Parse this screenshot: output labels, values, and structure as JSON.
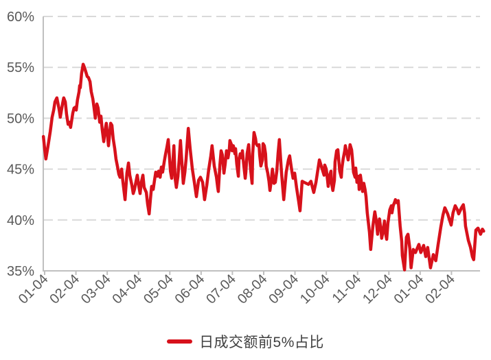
{
  "chart_data": {
    "type": "line",
    "title": "",
    "legend": {
      "position": "bottom",
      "entries": [
        "日成交额前5%占比"
      ]
    },
    "x_axis": {
      "tick_labels": [
        "01-04",
        "02-04",
        "03-04",
        "04-04",
        "05-04",
        "06-04",
        "07-04",
        "08-04",
        "09-04",
        "10-04",
        "11-04",
        "12-04",
        "01-04",
        "02-04"
      ],
      "x_unit": "months_from_first_tick"
    },
    "y_axis": {
      "min": 35,
      "max": 60,
      "step": 5,
      "unit": "%",
      "tick_labels": [
        "35%",
        "40%",
        "45%",
        "50%",
        "55%",
        "60%"
      ]
    },
    "grid": {
      "horizontal": true,
      "style": "dashed"
    },
    "style": {
      "grid_color": "#d9d9d9",
      "axis_color": "#bfbfbf",
      "tick_label_color": "#595959",
      "background": "#ffffff"
    },
    "series": [
      {
        "name": "日成交额前5%占比",
        "color": "#d7111b",
        "points": [
          [
            -0.04,
            48.2
          ],
          [
            0,
            47
          ],
          [
            0.04,
            46
          ],
          [
            0.11,
            47.3
          ],
          [
            0.18,
            48.7
          ],
          [
            0.24,
            50.1
          ],
          [
            0.29,
            50.8
          ],
          [
            0.33,
            51.6
          ],
          [
            0.39,
            52
          ],
          [
            0.46,
            50.9
          ],
          [
            0.5,
            50.1
          ],
          [
            0.57,
            51.4
          ],
          [
            0.61,
            52
          ],
          [
            0.66,
            51.6
          ],
          [
            0.7,
            50.4
          ],
          [
            0.75,
            49.4
          ],
          [
            0.79,
            49.6
          ],
          [
            0.83,
            49.1
          ],
          [
            0.9,
            50.5
          ],
          [
            0.94,
            51
          ],
          [
            0.99,
            51.1
          ],
          [
            1.01,
            50.8
          ],
          [
            1.05,
            51.8
          ],
          [
            1.1,
            52.6
          ],
          [
            1.12,
            53.2
          ],
          [
            1.14,
            53
          ],
          [
            1.18,
            54.4
          ],
          [
            1.23,
            55.3
          ],
          [
            1.27,
            55
          ],
          [
            1.32,
            54.5
          ],
          [
            1.36,
            54.1
          ],
          [
            1.4,
            54
          ],
          [
            1.45,
            53.6
          ],
          [
            1.49,
            52.6
          ],
          [
            1.54,
            51.9
          ],
          [
            1.58,
            51
          ],
          [
            1.62,
            50
          ],
          [
            1.67,
            51.4
          ],
          [
            1.71,
            51
          ],
          [
            1.76,
            49.6
          ],
          [
            1.8,
            50.2
          ],
          [
            1.84,
            48.9
          ],
          [
            1.89,
            47.7
          ],
          [
            1.93,
            48.8
          ],
          [
            1.97,
            49.5
          ],
          [
            2.04,
            47.3
          ],
          [
            2.11,
            49.5
          ],
          [
            2.15,
            49.3
          ],
          [
            2.19,
            48
          ],
          [
            2.24,
            47
          ],
          [
            2.28,
            46
          ],
          [
            2.33,
            45.2
          ],
          [
            2.37,
            44.5
          ],
          [
            2.41,
            44.2
          ],
          [
            2.46,
            45
          ],
          [
            2.5,
            43.8
          ],
          [
            2.57,
            42
          ],
          [
            2.63,
            44.6
          ],
          [
            2.68,
            45.6
          ],
          [
            2.72,
            44.4
          ],
          [
            2.79,
            43.4
          ],
          [
            2.83,
            42.6
          ],
          [
            2.87,
            43
          ],
          [
            2.92,
            43.8
          ],
          [
            2.96,
            44.4
          ],
          [
            3.01,
            43.3
          ],
          [
            3.05,
            42.6
          ],
          [
            3.09,
            43.7
          ],
          [
            3.14,
            44.4
          ],
          [
            3.18,
            43.2
          ],
          [
            3.25,
            42.7
          ],
          [
            3.29,
            41.6
          ],
          [
            3.34,
            40.6
          ],
          [
            3.38,
            42
          ],
          [
            3.42,
            43.3
          ],
          [
            3.47,
            43
          ],
          [
            3.51,
            43.9
          ],
          [
            3.55,
            44.7
          ],
          [
            3.6,
            44.3
          ],
          [
            3.64,
            44.8
          ],
          [
            3.69,
            44.2
          ],
          [
            3.73,
            45.2
          ],
          [
            3.77,
            44.7
          ],
          [
            3.82,
            45.7
          ],
          [
            3.86,
            46.4
          ],
          [
            3.91,
            47.2
          ],
          [
            3.95,
            47.9
          ],
          [
            4.02,
            44.8
          ],
          [
            4.06,
            44.1
          ],
          [
            4.1,
            45.7
          ],
          [
            4.13,
            47.3
          ],
          [
            4.17,
            44.1
          ],
          [
            4.21,
            43.2
          ],
          [
            4.26,
            44.3
          ],
          [
            4.3,
            46
          ],
          [
            4.34,
            47.8
          ],
          [
            4.39,
            45.4
          ],
          [
            4.43,
            43.6
          ],
          [
            4.48,
            44.7
          ],
          [
            4.52,
            46
          ],
          [
            4.59,
            49
          ],
          [
            4.65,
            47
          ],
          [
            4.72,
            45
          ],
          [
            4.78,
            43.8
          ],
          [
            4.85,
            42.3
          ],
          [
            4.92,
            43.9
          ],
          [
            4.98,
            44.2
          ],
          [
            5.05,
            43.7
          ],
          [
            5.11,
            42
          ],
          [
            5.18,
            43.4
          ],
          [
            5.24,
            44.9
          ],
          [
            5.31,
            46.3
          ],
          [
            5.35,
            47.3
          ],
          [
            5.42,
            45.3
          ],
          [
            5.49,
            44.2
          ],
          [
            5.53,
            43.2
          ],
          [
            5.55,
            42.8
          ],
          [
            5.6,
            45.4
          ],
          [
            5.64,
            46.8
          ],
          [
            5.68,
            46.4
          ],
          [
            5.73,
            44.6
          ],
          [
            5.77,
            45.5
          ],
          [
            5.81,
            46.8
          ],
          [
            5.86,
            46.1
          ],
          [
            5.9,
            46.9
          ],
          [
            5.92,
            47.8
          ],
          [
            5.97,
            47.4
          ],
          [
            5.99,
            46.8
          ],
          [
            6.03,
            47.3
          ],
          [
            6.08,
            46.5
          ],
          [
            6.1,
            47
          ],
          [
            6.14,
            45.5
          ],
          [
            6.19,
            44.3
          ],
          [
            6.21,
            45.9
          ],
          [
            6.25,
            46.5
          ],
          [
            6.3,
            46.1
          ],
          [
            6.32,
            46.8
          ],
          [
            6.36,
            45.5
          ],
          [
            6.41,
            44.1
          ],
          [
            6.43,
            44.7
          ],
          [
            6.47,
            46.5
          ],
          [
            6.52,
            47.4
          ],
          [
            6.54,
            46.6
          ],
          [
            6.58,
            45
          ],
          [
            6.63,
            43.6
          ],
          [
            6.65,
            46.5
          ],
          [
            6.69,
            48.6
          ],
          [
            6.74,
            48
          ],
          [
            6.76,
            47.5
          ],
          [
            6.8,
            47.3
          ],
          [
            6.85,
            47.4
          ],
          [
            6.87,
            46.4
          ],
          [
            6.91,
            45.3
          ],
          [
            6.96,
            45.9
          ],
          [
            6.98,
            47.5
          ],
          [
            7.02,
            47.3
          ],
          [
            7.06,
            46.5
          ],
          [
            7.08,
            45.3
          ],
          [
            7.13,
            44.6
          ],
          [
            7.17,
            43.8
          ],
          [
            7.2,
            42.9
          ],
          [
            7.24,
            43.8
          ],
          [
            7.28,
            45
          ],
          [
            7.33,
            43.6
          ],
          [
            7.37,
            43.7
          ],
          [
            7.42,
            44.8
          ],
          [
            7.46,
            46.6
          ],
          [
            7.5,
            47.9
          ],
          [
            7.57,
            44.6
          ],
          [
            7.64,
            42
          ],
          [
            7.72,
            44.7
          ],
          [
            7.79,
            45.9
          ],
          [
            7.83,
            46.3
          ],
          [
            7.9,
            44.8
          ],
          [
            7.94,
            44.1
          ],
          [
            7.99,
            44.6
          ],
          [
            8.05,
            43.2
          ],
          [
            8.12,
            41.8
          ],
          [
            8.16,
            40.9
          ],
          [
            8.23,
            43.8
          ],
          [
            8.29,
            43.7
          ],
          [
            8.36,
            43.6
          ],
          [
            8.43,
            43.5
          ],
          [
            8.51,
            43.8
          ],
          [
            8.6,
            42.7
          ],
          [
            8.67,
            43.7
          ],
          [
            8.73,
            44.9
          ],
          [
            8.78,
            45.9
          ],
          [
            8.82,
            45.5
          ],
          [
            8.89,
            44.8
          ],
          [
            8.93,
            44.4
          ],
          [
            8.95,
            45.4
          ],
          [
            9,
            45
          ],
          [
            9.04,
            43.9
          ],
          [
            9.06,
            43.3
          ],
          [
            9.11,
            44.4
          ],
          [
            9.15,
            44.8
          ],
          [
            9.17,
            43.6
          ],
          [
            9.21,
            42.9
          ],
          [
            9.26,
            43.9
          ],
          [
            9.28,
            45.7
          ],
          [
            9.33,
            46.8
          ],
          [
            9.37,
            46.9
          ],
          [
            9.39,
            46.2
          ],
          [
            9.43,
            44.8
          ],
          [
            9.48,
            44.2
          ],
          [
            9.5,
            45.1
          ],
          [
            9.54,
            46
          ],
          [
            9.59,
            46.8
          ],
          [
            9.61,
            47.3
          ],
          [
            9.7,
            45.9
          ],
          [
            9.76,
            47.4
          ],
          [
            9.81,
            46.9
          ],
          [
            9.83,
            46.2
          ],
          [
            9.87,
            44.7
          ],
          [
            9.92,
            44.2
          ],
          [
            9.94,
            45.1
          ],
          [
            9.98,
            43.7
          ],
          [
            10.03,
            44.3
          ],
          [
            10.05,
            43
          ],
          [
            10.09,
            44.4
          ],
          [
            10.14,
            43.3
          ],
          [
            10.16,
            42.8
          ],
          [
            10.2,
            43.6
          ],
          [
            10.24,
            43
          ],
          [
            10.27,
            42.3
          ],
          [
            10.31,
            40.7
          ],
          [
            10.38,
            38.8
          ],
          [
            10.42,
            37.1
          ],
          [
            10.49,
            39.4
          ],
          [
            10.55,
            40.8
          ],
          [
            10.6,
            39.9
          ],
          [
            10.64,
            38.6
          ],
          [
            10.7,
            40.1
          ],
          [
            10.75,
            39
          ],
          [
            10.77,
            38.2
          ],
          [
            10.82,
            39
          ],
          [
            10.86,
            39.9
          ],
          [
            10.88,
            38.9
          ],
          [
            10.93,
            38.1
          ],
          [
            10.97,
            39.7
          ],
          [
            11.03,
            41
          ],
          [
            11.08,
            41.4
          ],
          [
            11.1,
            40.7
          ],
          [
            11.14,
            41.4
          ],
          [
            11.19,
            41.8
          ],
          [
            11.21,
            42
          ],
          [
            11.25,
            41.7
          ],
          [
            11.3,
            41.9
          ],
          [
            11.32,
            41
          ],
          [
            11.36,
            39.4
          ],
          [
            11.41,
            37.9
          ],
          [
            11.43,
            36.5
          ],
          [
            11.5,
            35.1
          ],
          [
            11.56,
            38.3
          ],
          [
            11.61,
            38.6
          ],
          [
            11.67,
            37.2
          ],
          [
            11.71,
            35.3
          ],
          [
            11.78,
            37.1
          ],
          [
            11.85,
            36.8
          ],
          [
            11.96,
            37.6
          ],
          [
            12.02,
            36.8
          ],
          [
            12.11,
            37.5
          ],
          [
            12.18,
            36.4
          ],
          [
            12.24,
            37.3
          ],
          [
            12.33,
            35.3
          ],
          [
            12.42,
            36.6
          ],
          [
            12.5,
            36
          ],
          [
            12.57,
            37.5
          ],
          [
            12.66,
            39.3
          ],
          [
            12.73,
            40.5
          ],
          [
            12.79,
            41.2
          ],
          [
            12.88,
            40.6
          ],
          [
            12.95,
            39.9
          ],
          [
            12.99,
            39.5
          ],
          [
            13.05,
            40.7
          ],
          [
            13.12,
            41.4
          ],
          [
            13.19,
            41
          ],
          [
            13.23,
            40.6
          ],
          [
            13.32,
            41.2
          ],
          [
            13.38,
            41.5
          ],
          [
            13.42,
            40.7
          ],
          [
            13.45,
            39.4
          ],
          [
            13.54,
            38
          ],
          [
            13.61,
            37.3
          ],
          [
            13.67,
            36.4
          ],
          [
            13.71,
            36.1
          ],
          [
            13.78,
            39
          ],
          [
            13.85,
            39.2
          ],
          [
            13.93,
            38.6
          ],
          [
            13.99,
            39.1
          ],
          [
            14.03,
            38.9
          ]
        ]
      }
    ]
  }
}
